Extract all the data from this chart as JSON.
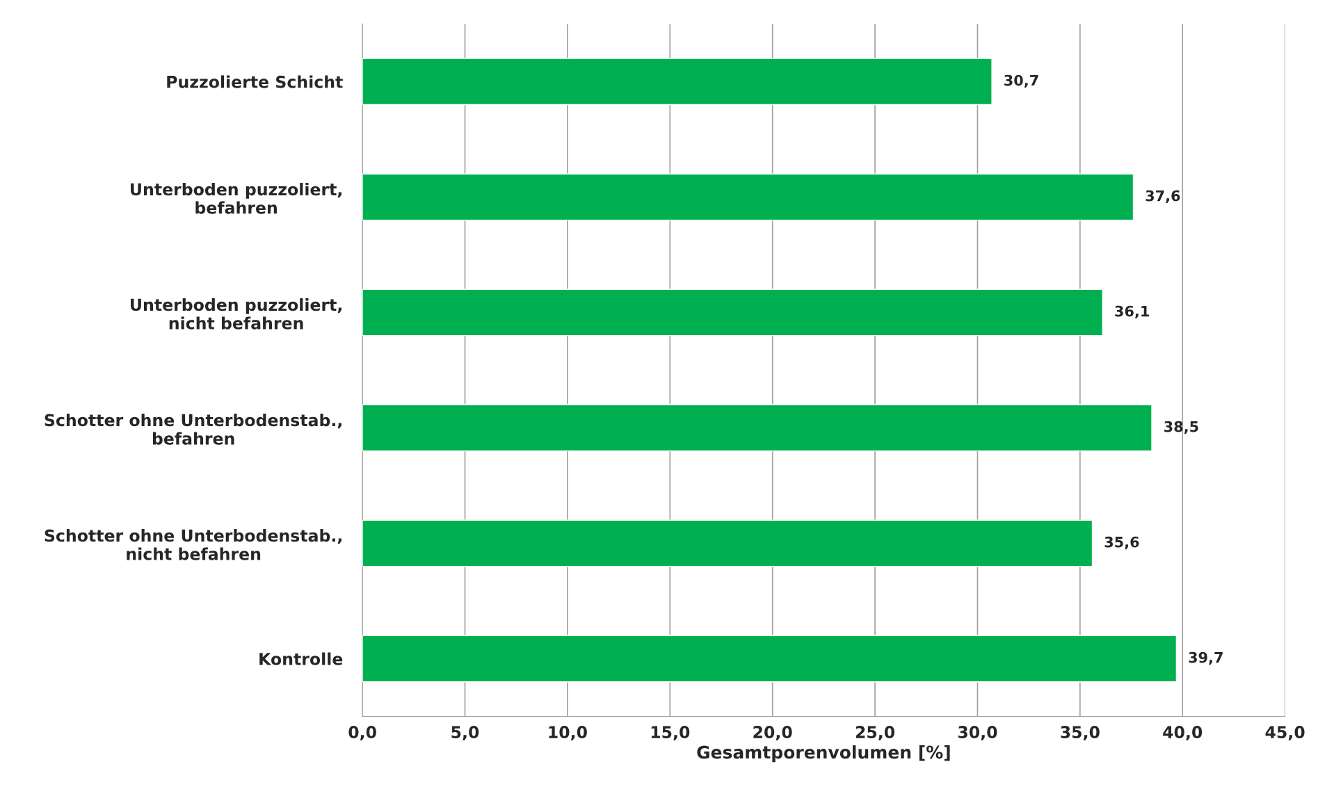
{
  "chart_data": {
    "type": "bar",
    "orientation": "horizontal",
    "xlabel": "Gesamtporenvolumen [%]",
    "categories": [
      "Puzzolierte Schicht",
      "Unterboden puzzoliert,\nbefahren",
      "Unterboden puzzoliert,\nnicht befahren",
      "Schotter ohne Unterbodenstab.,\nbefahren",
      "Schotter ohne Unterbodenstab.,\nnicht befahren",
      "Kontrolle"
    ],
    "values": [
      30.7,
      37.6,
      36.1,
      38.5,
      35.6,
      39.7
    ],
    "value_labels": [
      "30,7",
      "37,6",
      "36,1",
      "38,5",
      "35,6",
      "39,7"
    ],
    "color": "#00b050",
    "xlim": [
      0,
      45
    ],
    "xticks": [
      {
        "value": 0,
        "label": "0,0"
      },
      {
        "value": 5,
        "label": "5,0"
      },
      {
        "value": 10,
        "label": "10,0"
      },
      {
        "value": 15,
        "label": "15,0"
      },
      {
        "value": 20,
        "label": "20,0"
      },
      {
        "value": 25,
        "label": "25,0"
      },
      {
        "value": 30,
        "label": "30,0"
      },
      {
        "value": 35,
        "label": "35,0"
      },
      {
        "value": 40,
        "label": "40,0"
      },
      {
        "value": 45,
        "label": "45,0"
      }
    ],
    "grid": "x",
    "legend": false
  }
}
